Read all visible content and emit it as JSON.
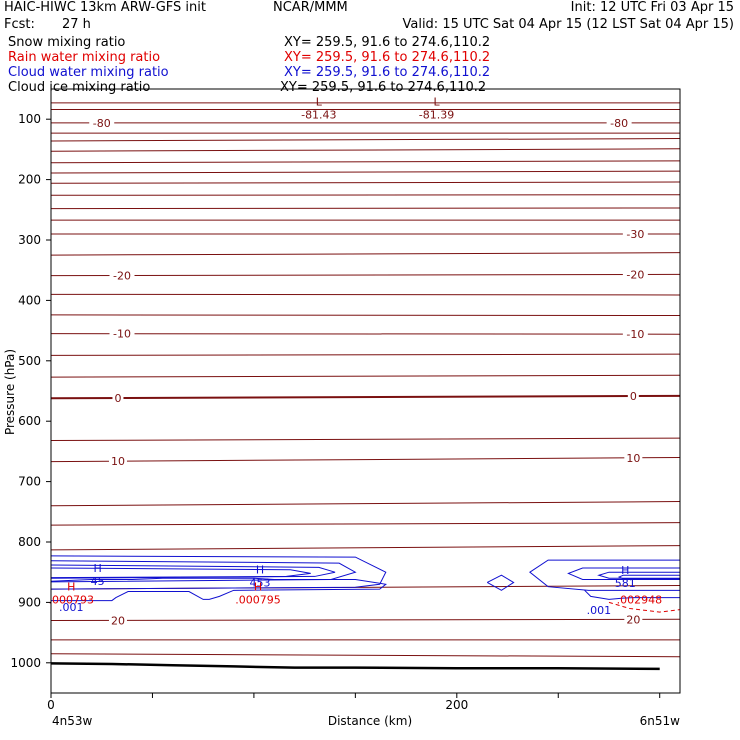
{
  "header": {
    "model": "HAIC-HIWC 13km ARW-GFS init",
    "center": "NCAR/MMM",
    "init": "Init: 12 UTC Fri 03 Apr 15",
    "fcst_label": "Fcst:",
    "fcst_value": "27 h",
    "valid": "Valid: 15 UTC Sat 04 Apr 15 (12 LST Sat 04 Apr 15)"
  },
  "fields": [
    {
      "label": "Snow mixing ratio",
      "xy": "XY= 259.5, 91.6 to 274.6,110.2",
      "color": "#000000"
    },
    {
      "label": "Rain water mixing ratio",
      "xy": "XY= 259.5, 91.6 to 274.6,110.2",
      "color": "#e00000"
    },
    {
      "label": "Cloud water mixing ratio",
      "xy": "XY= 259.5, 91.6 to 274.6,110.2",
      "color": "#1010d0"
    },
    {
      "label": "Cloud ice mixing ratio",
      "xy": "XY= 259.5, 91.6 to 274.6,110.2",
      "color": "#000000"
    }
  ],
  "colors": {
    "temperature": "#7a1010",
    "cloud_water": "#1010d0",
    "rain_water": "#e00000",
    "ground": "#000000",
    "frame": "#000000"
  },
  "chart_data": {
    "type": "contour-cross-section",
    "xlabel": "Distance (km)",
    "ylabel": "Pressure (hPa)",
    "xlim": [
      0,
      310
    ],
    "ylim": [
      1050,
      50
    ],
    "y_log": false,
    "x_ticks": [
      {
        "value": 0,
        "label": "0"
      },
      {
        "value": 50,
        "label": ""
      },
      {
        "value": 100,
        "label": ""
      },
      {
        "value": 150,
        "label": ""
      },
      {
        "value": 200,
        "label": "200"
      },
      {
        "value": 250,
        "label": ""
      },
      {
        "value": 300,
        "label": ""
      }
    ],
    "y_ticks": [
      100,
      200,
      300,
      400,
      500,
      600,
      700,
      800,
      900,
      1000
    ],
    "endpoints": {
      "left": "4n53w",
      "right": "6n51w"
    },
    "temperature_isotherms": [
      {
        "p_left": 73,
        "p_right": 73
      },
      {
        "p_left": 84,
        "p_right": 84
      },
      {
        "p_left": 106,
        "p_right": 106,
        "label": "-80",
        "label_x": [
          25,
          280
        ]
      },
      {
        "p_left": 123,
        "p_right": 123
      },
      {
        "p_left": 136,
        "p_right": 132
      },
      {
        "p_left": 153,
        "p_right": 149
      },
      {
        "p_left": 172,
        "p_right": 169
      },
      {
        "p_left": 189,
        "p_right": 186
      },
      {
        "p_left": 206,
        "p_right": 204
      },
      {
        "p_left": 226,
        "p_right": 225
      },
      {
        "p_left": 248,
        "p_right": 247
      },
      {
        "p_left": 267,
        "p_right": 267
      },
      {
        "p_left": 290,
        "p_right": 290,
        "label": "-30",
        "label_x": [
          288
        ]
      },
      {
        "p_left": 325,
        "p_right": 321
      },
      {
        "p_left": 359,
        "p_right": 357,
        "label": "-20",
        "label_x": [
          35,
          288
        ]
      },
      {
        "p_left": 390,
        "p_right": 391
      },
      {
        "p_left": 424,
        "p_right": 425
      },
      {
        "p_left": 455,
        "p_right": 456,
        "label": "-10",
        "label_x": [
          35,
          288
        ]
      },
      {
        "p_left": 491,
        "p_right": 489
      },
      {
        "p_left": 527,
        "p_right": 524
      },
      {
        "p_left": 562,
        "p_right": 558,
        "label": "0",
        "label_x": [
          33,
          287
        ],
        "bold": true
      },
      {
        "p_left": 632,
        "p_right": 628
      },
      {
        "p_left": 667,
        "p_right": 660,
        "label": "10",
        "label_x": [
          33,
          287
        ]
      },
      {
        "p_left": 740,
        "p_right": 733
      },
      {
        "p_left": 772,
        "p_right": 768
      },
      {
        "p_left": 813,
        "p_right": 806
      },
      {
        "p_left": 878,
        "p_right": 872
      },
      {
        "p_left": 930,
        "p_right": 928,
        "label": "20",
        "label_x": [
          33,
          287
        ]
      },
      {
        "p_left": 962,
        "p_right": 962
      },
      {
        "p_left": 985,
        "p_right": 990
      }
    ],
    "extrema_labels": [
      {
        "series": "temperature",
        "x": 132,
        "p": 82,
        "mark": "L",
        "value": "-81.43"
      },
      {
        "series": "temperature",
        "x": 190,
        "p": 82,
        "mark": "L",
        "value": "-81.39"
      },
      {
        "series": "cloud_water",
        "x": 23,
        "p": 855,
        "mark": "H",
        "value": "45"
      },
      {
        "series": "cloud_water",
        "x": 103,
        "p": 857,
        "mark": "H",
        "value": "453"
      },
      {
        "series": "cloud_water",
        "x": 283,
        "p": 858,
        "mark": "H",
        "value": "581"
      },
      {
        "series": "rain_water",
        "x": 10,
        "p": 885,
        "mark": "H",
        "value": ".000793"
      },
      {
        "series": "rain_water",
        "x": 102,
        "p": 885,
        "mark": "H",
        "value": ".000795"
      },
      {
        "series": "rain_water",
        "x": 290,
        "p": 885,
        "mark": "",
        "value": ".002948"
      },
      {
        "series": "cloud_water",
        "x": 10,
        "p": 898,
        "mark": "",
        "value": ".001"
      },
      {
        "series": "cloud_water",
        "x": 270,
        "p": 903,
        "mark": "",
        "value": ".001"
      }
    ],
    "cloud_water_contours": [
      {
        "x": [
          0,
          150,
          165,
          162,
          150,
          0
        ],
        "p": [
          823,
          825,
          850,
          870,
          875,
          878
        ]
      },
      {
        "x": [
          0,
          142,
          150,
          138,
          0
        ],
        "p": [
          831,
          835,
          850,
          862,
          866
        ]
      },
      {
        "x": [
          0,
          132,
          140,
          130,
          0
        ],
        "p": [
          838,
          842,
          850,
          857,
          860
        ]
      },
      {
        "x": [
          0,
          118,
          128,
          116,
          0
        ],
        "p": [
          843,
          846,
          852,
          857,
          859
        ]
      },
      {
        "x": [
          0,
          20,
          40,
          55,
          80,
          100,
          110,
          150,
          165,
          162,
          90,
          83,
          78,
          75,
          68,
          38,
          32,
          30,
          25,
          0
        ],
        "p": [
          865,
          862,
          862,
          860,
          860,
          860,
          862,
          862,
          870,
          878,
          880,
          890,
          895,
          895,
          882,
          882,
          892,
          897,
          897,
          897
        ]
      },
      {
        "x": [
          215,
          222,
          228,
          222,
          215
        ],
        "p": [
          867,
          855,
          867,
          880,
          867
        ]
      },
      {
        "x": [
          310,
          245,
          236,
          245,
          265,
          310
        ],
        "p": [
          830,
          830,
          850,
          874,
          880,
          880
        ]
      },
      {
        "x": [
          310,
          262,
          255,
          262,
          310
        ],
        "p": [
          843,
          843,
          852,
          862,
          862
        ]
      },
      {
        "x": [
          310,
          275,
          270,
          275,
          310
        ],
        "p": [
          850,
          850,
          855,
          860,
          860
        ]
      },
      {
        "x": [
          310,
          282,
          280,
          282,
          310
        ],
        "p": [
          855,
          855,
          858,
          861,
          861
        ]
      },
      {
        "x": [
          263,
          266,
          275,
          282,
          287,
          310
        ],
        "p": [
          880,
          890,
          895,
          893,
          892,
          892
        ]
      }
    ],
    "rain_water_contours": [
      {
        "x": [
          275,
          285,
          300,
          310
        ],
        "p": [
          900,
          910,
          916,
          912
        ],
        "dashed": true
      }
    ],
    "ground": {
      "x": [
        0,
        30,
        60,
        90,
        120,
        150,
        200,
        250,
        300
      ],
      "p": [
        1001,
        1002,
        1004,
        1006,
        1008,
        1008,
        1009,
        1009,
        1010
      ]
    }
  }
}
